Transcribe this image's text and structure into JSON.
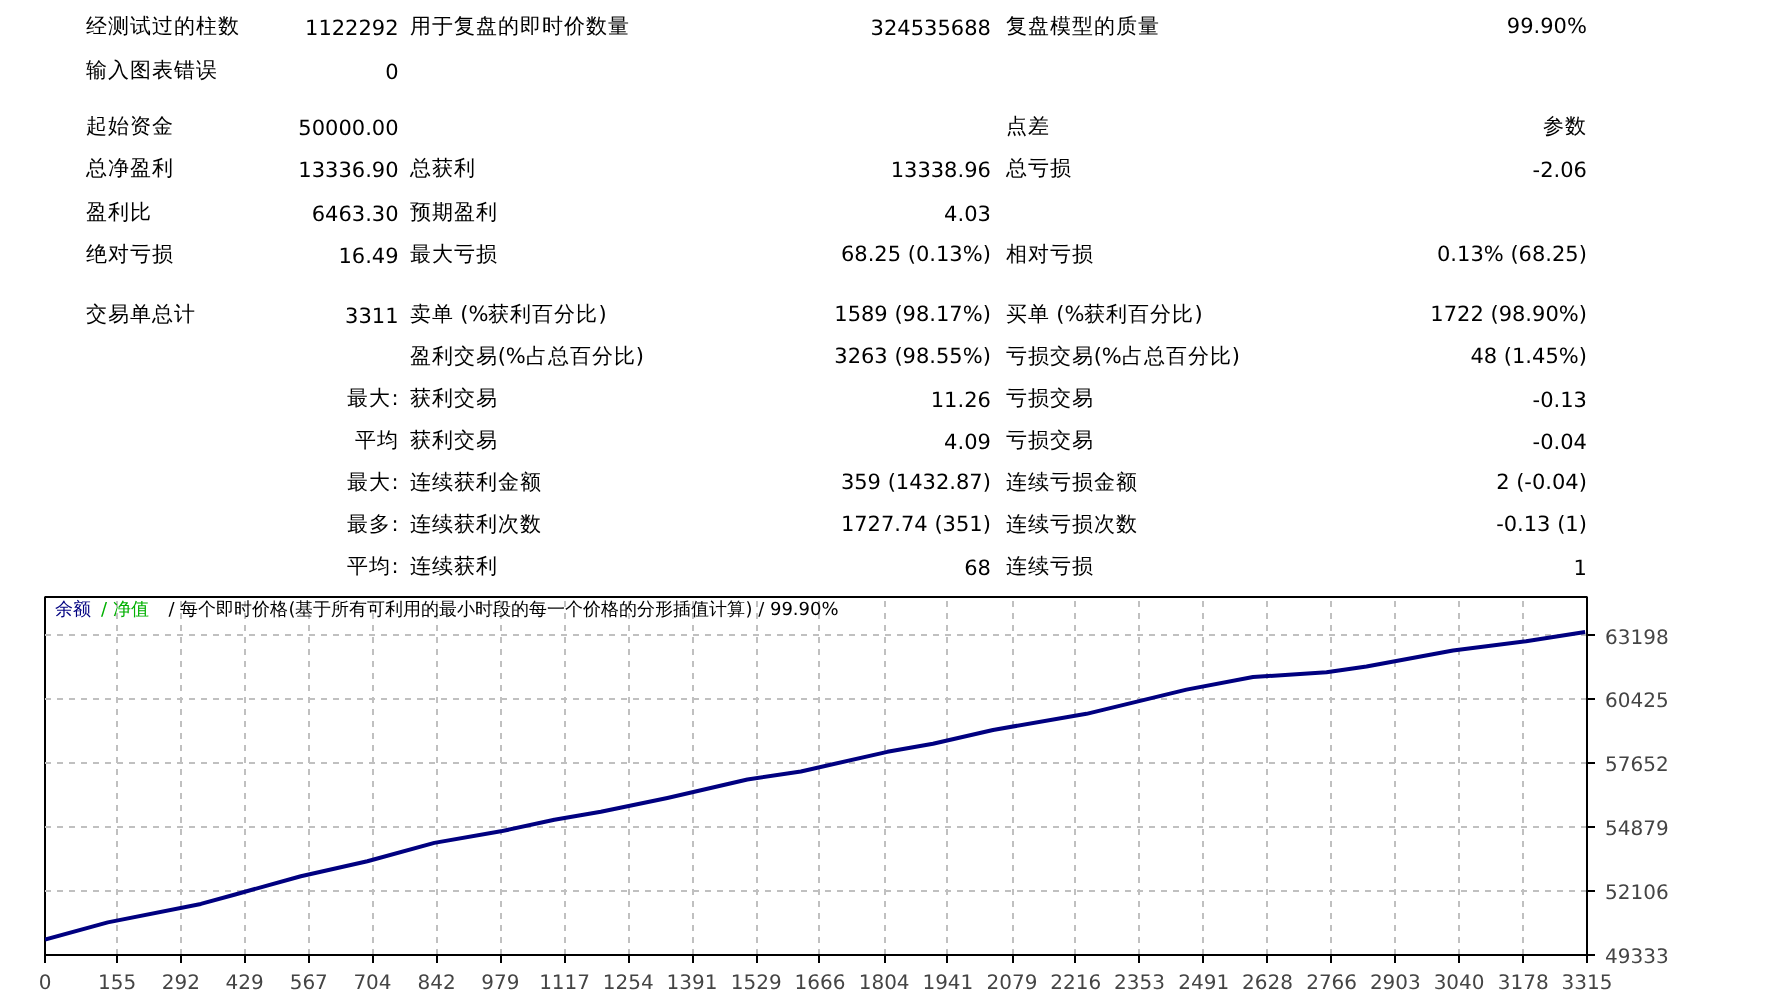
{
  "chart_data": {
    "type": "line",
    "title": "/ 每个即时价格(基于所有可利用的最小时段的每一个价格的分形插值计算) / 99.90%",
    "annotations": [
      "经测试过的柱数",
      "1122292",
      "用于复盘的即时价数量",
      "324535688",
      "复盘模型的质量",
      "99.90%",
      "输入图表错误",
      "0",
      "起始资金",
      "50000.00",
      "点差",
      "参数",
      "总净盈利",
      "13336.90",
      "总获利",
      "13338.96",
      "总亏损",
      "-2.06",
      "盈利比",
      "6463.30",
      "预期盈利",
      "4.03",
      "绝对亏损",
      "16.49",
      "最大亏损",
      "68.25 (0.13%)",
      "相对亏损",
      "0.13% (68.25)",
      "交易单总计",
      "3311",
      "卖单 (%获利百分比)",
      "1589 (98.17%)",
      "买单 (%获利百分比)",
      "1722 (98.90%)",
      "盈利交易(%占总百分比)",
      "3263 (98.55%)",
      "亏损交易(%占总百分比)",
      "48 (1.45%)",
      "最大:",
      "获利交易",
      "11.26",
      "亏损交易",
      "-0.13",
      "平均",
      "获利交易",
      "4.09",
      "亏损交易",
      "-0.04",
      "最大:",
      "连续获利金额",
      "359 (1432.87)",
      "连续亏损金额",
      "2 (-0.04)",
      "最多:",
      "连续获利次数",
      "1727.74 (351)",
      "连续亏损次数",
      "-0.13 (1)",
      "平均:",
      "连续获利",
      "68",
      "连续亏损",
      "1"
    ],
    "x": [
      0,
      135,
      335,
      407,
      550,
      693,
      837,
      980,
      1095,
      1195,
      1338,
      1510,
      1625,
      1811,
      1909,
      2038,
      2239,
      2454,
      2597,
      2755,
      2841,
      3027,
      3184,
      3311
    ],
    "series": [
      {
        "name": "余额",
        "color": "#000080",
        "values": [
          50000,
          50750,
          51550,
          51950,
          52750,
          53400,
          54200,
          54700,
          55200,
          55550,
          56150,
          56950,
          57300,
          58150,
          58500,
          59100,
          59800,
          60850,
          61400,
          61600,
          61850,
          62550,
          62950,
          63350
        ]
      },
      {
        "name": "/ 净值",
        "color": "#00b000",
        "values": [
          null,
          null,
          null,
          null,
          null,
          null,
          null,
          null,
          null,
          null,
          null,
          null,
          null,
          null,
          null,
          null,
          null,
          null,
          null,
          null,
          null,
          null,
          null,
          null
        ]
      }
    ],
    "xlim": [
      0,
      3315
    ],
    "xticks": [
      0,
      155,
      292,
      429,
      567,
      704,
      842,
      979,
      1117,
      1254,
      1391,
      1529,
      1666,
      1804,
      1941,
      2079,
      2216,
      2353,
      2491,
      2628,
      2766,
      2903,
      3040,
      3178,
      3315
    ],
    "ylim": [
      49333,
      64870
    ],
    "yticks": [
      49333,
      52106,
      54879,
      57652,
      60425,
      63198
    ],
    "grid": true,
    "legend": "top left",
    "line_style": "solid"
  }
}
